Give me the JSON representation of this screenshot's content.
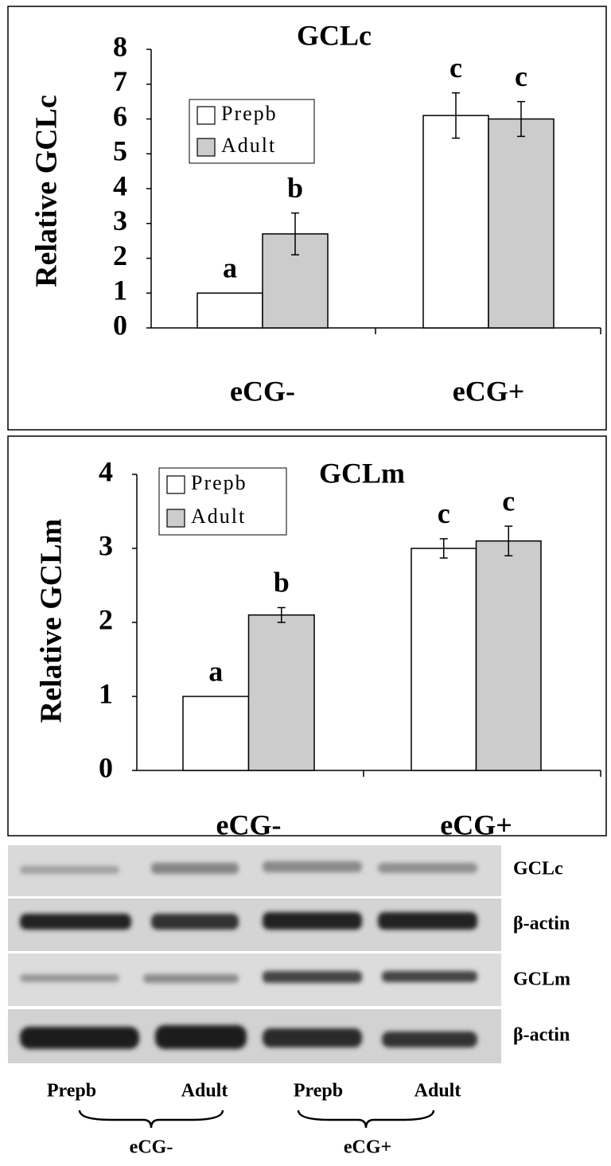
{
  "chart_data": [
    {
      "type": "bar",
      "title": "GCLc",
      "y_label": "Relative GCLc",
      "categories": [
        "eCG-",
        "eCG+"
      ],
      "series": [
        {
          "name": "Prepb",
          "color": "#ffffff",
          "values": [
            1,
            6.1
          ],
          "errors": [
            0,
            0.65
          ],
          "labels": [
            "a",
            "c"
          ]
        },
        {
          "name": "Adult",
          "color": "#cccccc",
          "values": [
            2.7,
            6.0
          ],
          "errors": [
            0.6,
            0.5
          ],
          "labels": [
            "b",
            "c"
          ]
        }
      ],
      "ylim": [
        0,
        8
      ],
      "yticks": [
        0,
        1,
        2,
        3,
        4,
        5,
        6,
        7,
        8
      ]
    },
    {
      "type": "bar",
      "title": "GCLm",
      "y_label": "Relative GCLm",
      "categories": [
        "eCG-",
        "eCG+"
      ],
      "series": [
        {
          "name": "Prepb",
          "color": "#ffffff",
          "values": [
            1,
            3.0
          ],
          "errors": [
            0,
            0.13
          ],
          "labels": [
            "a",
            "c"
          ]
        },
        {
          "name": "Adult",
          "color": "#cccccc",
          "values": [
            2.1,
            3.1
          ],
          "errors": [
            0.1,
            0.2
          ],
          "labels": [
            "b",
            "c"
          ]
        }
      ],
      "ylim": [
        0,
        4
      ],
      "yticks": [
        0,
        1,
        2,
        3,
        4
      ]
    }
  ],
  "blot": {
    "bands": [
      "GCLc",
      "β-actin",
      "GCLm",
      "β-actin"
    ],
    "lanes": [
      "Prepb",
      "Adult",
      "Prepb",
      "Adult"
    ],
    "groups": [
      "eCG-",
      "eCG+"
    ]
  }
}
